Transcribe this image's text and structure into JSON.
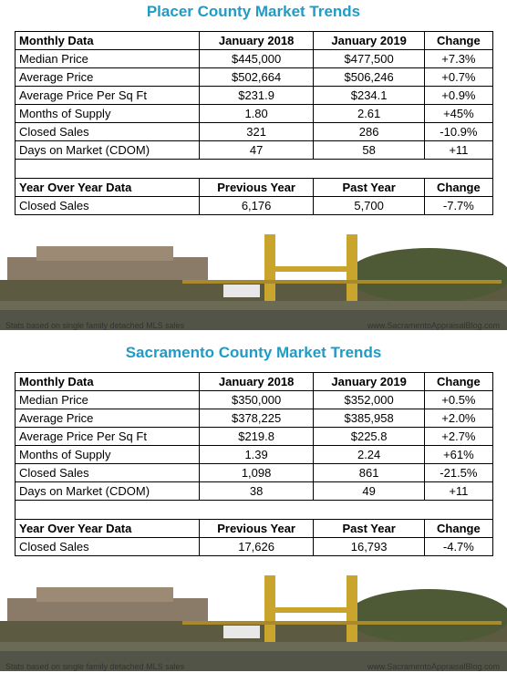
{
  "sections": [
    {
      "title": "Placer County Market Trends",
      "monthly": {
        "header": [
          "Monthly Data",
          "January 2018",
          "January 2019",
          "Change"
        ],
        "rows": [
          [
            "Median Price",
            "$445,000",
            "$477,500",
            "+7.3%"
          ],
          [
            "Average Price",
            "$502,664",
            "$506,246",
            "+0.7%"
          ],
          [
            "Average Price Per Sq Ft",
            "$231.9",
            "$234.1",
            "+0.9%"
          ],
          [
            "Months of Supply",
            "1.80",
            "2.61",
            "+45%"
          ],
          [
            "Closed Sales",
            "321",
            "286",
            "-10.9%"
          ],
          [
            "Days on Market (CDOM)",
            "47",
            "58",
            "+11"
          ]
        ]
      },
      "yoy": {
        "header": [
          "Year Over Year Data",
          "Previous Year",
          "Past Year",
          "Change"
        ],
        "rows": [
          [
            "Closed Sales",
            "6,176",
            "5,700",
            "-7.7%"
          ]
        ]
      },
      "note": "Stats based on single family detached MLS sales",
      "website": "www.SacramentoAppraisalBlog.com"
    },
    {
      "title": "Sacramento County Market Trends",
      "monthly": {
        "header": [
          "Monthly Data",
          "January 2018",
          "January 2019",
          "Change"
        ],
        "rows": [
          [
            "Median Price",
            "$350,000",
            "$352,000",
            "+0.5%"
          ],
          [
            "Average Price",
            "$378,225",
            "$385,958",
            "+2.0%"
          ],
          [
            "Average Price Per Sq Ft",
            "$219.8",
            "$225.8",
            "+2.7%"
          ],
          [
            "Months of Supply",
            "1.39",
            "2.24",
            "+61%"
          ],
          [
            "Closed Sales",
            "1,098",
            "861",
            "-21.5%"
          ],
          [
            "Days on Market (CDOM)",
            "38",
            "49",
            "+11"
          ]
        ]
      },
      "yoy": {
        "header": [
          "Year Over Year Data",
          "Previous Year",
          "Past Year",
          "Change"
        ],
        "rows": [
          [
            "Closed Sales",
            "17,626",
            "16,793",
            "-4.7%"
          ]
        ]
      },
      "note": "Stats based on single family detached MLS sales",
      "website": "www.SacramentoAppraisalBlog.com"
    }
  ]
}
